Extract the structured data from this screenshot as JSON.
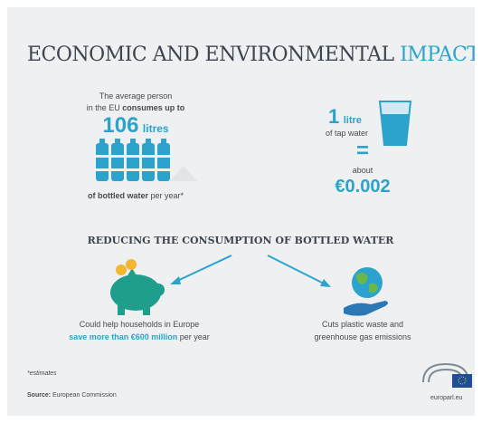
{
  "header": {
    "title": "ECONOMIC AND ENVIRONMENTAL",
    "title_highlight": "IMPACT"
  },
  "bottled": {
    "line1": "The average person",
    "line2_plain": "in the EU",
    "line2_bold": "consumes up to",
    "amount": "106",
    "unit": "litres",
    "footer_bold": "of bottled water",
    "footer_plain": "per year*"
  },
  "tap": {
    "amount": "1",
    "unit": "litre",
    "line": "of tap water",
    "equals": "=",
    "about": "about",
    "price": "€0.002"
  },
  "section": {
    "title": "REDUCING THE CONSUMPTION OF BOTTLED WATER",
    "left": {
      "line1": "Could help households in Europe",
      "highlight": "save more than €600 million",
      "rest": "per year"
    },
    "right": {
      "line1": "Cuts plastic waste and",
      "line2": "greenhouse gas emissions"
    }
  },
  "footer": {
    "note": "*estimates",
    "source_label": "Source:",
    "source": "European Commission",
    "site": "europarl.eu"
  }
}
